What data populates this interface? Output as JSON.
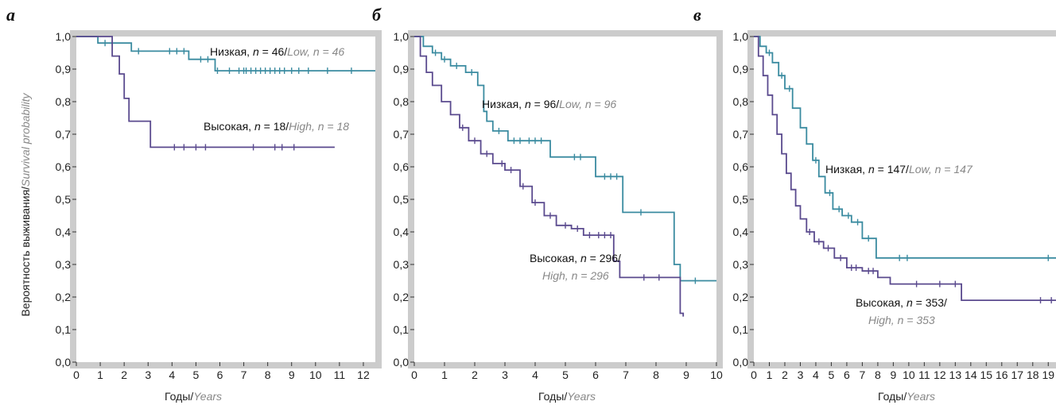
{
  "y_axis_label": {
    "ru": "Вероятность выживания",
    "en": "Survival probability"
  },
  "x_axis_label": {
    "ru": "Годы",
    "en": "Years"
  },
  "colors": {
    "low": "#3a8ba0",
    "high": "#5a4a8e",
    "frame": "#cccccc"
  },
  "chart_data": [
    {
      "panel": "а",
      "type": "line",
      "xlabel": "Годы/Years",
      "ylabel": "Вероятность выживания/Survival probability",
      "xlim": [
        0,
        12.5
      ],
      "ylim": [
        0,
        1
      ],
      "xticks": [
        "0",
        "1",
        "2",
        "3",
        "4",
        "5",
        "6",
        "7",
        "8",
        "9",
        "10",
        "11",
        "12"
      ],
      "yticks": [
        "0,0",
        "0,1",
        "0,2",
        "0,3",
        "0,4",
        "0,5",
        "0,6",
        "0,7",
        "0,8",
        "0,9",
        "1,0"
      ],
      "series": [
        {
          "name": "Низкая, n = 46/Low, n = 46",
          "group": "low",
          "steps": [
            [
              0,
              1.0
            ],
            [
              0.9,
              0.98
            ],
            [
              2.3,
              0.955
            ],
            [
              4.7,
              0.93
            ],
            [
              5.8,
              0.895
            ],
            [
              12.5,
              0.895
            ]
          ],
          "censors": [
            1.2,
            1.5,
            2.6,
            3.9,
            4.2,
            4.5,
            5.2,
            5.5,
            5.9,
            6.4,
            6.8,
            7.0,
            7.1,
            7.3,
            7.5,
            7.7,
            7.9,
            8.1,
            8.3,
            8.5,
            8.7,
            9.0,
            9.3,
            9.7,
            10.5,
            11.5
          ]
        },
        {
          "name": "Высокая, n = 18/High, n = 18",
          "group": "high",
          "steps": [
            [
              0,
              1.0
            ],
            [
              1.5,
              0.94
            ],
            [
              1.8,
              0.885
            ],
            [
              2.0,
              0.81
            ],
            [
              2.2,
              0.74
            ],
            [
              3.1,
              0.66
            ],
            [
              10.8,
              0.66
            ]
          ],
          "censors": [
            4.1,
            4.5,
            5.0,
            5.4,
            7.4,
            8.3,
            8.6,
            9.1
          ]
        }
      ],
      "annotations": [
        {
          "ru": "Низкая, ",
          "n": "n",
          "num": " = 46/",
          "en": "Low, n = 46"
        },
        {
          "ru": "Высокая, ",
          "n": "n",
          "num": " = 18/",
          "en": "High, n = 18"
        }
      ]
    },
    {
      "panel": "б",
      "type": "line",
      "xlabel": "Годы/Years",
      "ylabel": "",
      "xlim": [
        0,
        10
      ],
      "ylim": [
        0,
        1
      ],
      "xticks": [
        "0",
        "1",
        "2",
        "3",
        "4",
        "5",
        "6",
        "7",
        "8",
        "9",
        "10"
      ],
      "yticks": [
        "0,0",
        "0,1",
        "0,2",
        "0,3",
        "0,4",
        "0,5",
        "0,6",
        "0,7",
        "0,8",
        "0,9",
        "1,0"
      ],
      "series": [
        {
          "name": "Низкая, n = 96/Low, n = 96",
          "group": "low",
          "steps": [
            [
              0,
              1.0
            ],
            [
              0.3,
              0.97
            ],
            [
              0.6,
              0.95
            ],
            [
              0.9,
              0.93
            ],
            [
              1.2,
              0.91
            ],
            [
              1.7,
              0.89
            ],
            [
              2.1,
              0.85
            ],
            [
              2.3,
              0.77
            ],
            [
              2.4,
              0.74
            ],
            [
              2.6,
              0.71
            ],
            [
              3.1,
              0.68
            ],
            [
              4.5,
              0.63
            ],
            [
              6.0,
              0.57
            ],
            [
              6.9,
              0.46
            ],
            [
              8.6,
              0.3
            ],
            [
              8.8,
              0.25
            ],
            [
              10,
              0.25
            ]
          ],
          "censors": [
            0.7,
            1.0,
            1.4,
            1.9,
            2.8,
            3.3,
            3.5,
            3.8,
            4.0,
            4.2,
            5.3,
            5.5,
            6.3,
            6.5,
            6.7,
            7.5,
            9.3
          ]
        },
        {
          "name": "Высокая, n = 296/High, n = 296",
          "group": "high",
          "steps": [
            [
              0,
              1.0
            ],
            [
              0.2,
              0.94
            ],
            [
              0.4,
              0.89
            ],
            [
              0.6,
              0.85
            ],
            [
              0.9,
              0.8
            ],
            [
              1.2,
              0.76
            ],
            [
              1.5,
              0.72
            ],
            [
              1.8,
              0.68
            ],
            [
              2.2,
              0.64
            ],
            [
              2.6,
              0.61
            ],
            [
              3.0,
              0.59
            ],
            [
              3.5,
              0.54
            ],
            [
              3.9,
              0.49
            ],
            [
              4.3,
              0.45
            ],
            [
              4.7,
              0.42
            ],
            [
              5.2,
              0.41
            ],
            [
              5.6,
              0.39
            ],
            [
              6.6,
              0.31
            ],
            [
              6.8,
              0.26
            ],
            [
              8.8,
              0.15
            ],
            [
              8.9,
              0.14
            ]
          ],
          "censors": [
            1.6,
            2.0,
            2.4,
            2.9,
            3.2,
            3.6,
            4.0,
            4.5,
            5.0,
            5.4,
            5.8,
            6.1,
            6.3,
            6.5,
            7.6,
            8.1
          ]
        }
      ],
      "annotations": [
        {
          "ru": "Низкая, ",
          "n": "n",
          "num": " = 96/",
          "en": "Low, n = 96"
        },
        {
          "ru": "Высокая, ",
          "n": "n",
          "num": " = 296/",
          "en": "High, n = 296"
        }
      ]
    },
    {
      "panel": "в",
      "type": "line",
      "xlabel": "Годы/Years",
      "ylabel": "",
      "xlim": [
        0,
        19.5
      ],
      "ylim": [
        0,
        1
      ],
      "xticks": [
        "0",
        "1",
        "2",
        "3",
        "4",
        "5",
        "6",
        "7",
        "8",
        "9",
        "10",
        "11",
        "12",
        "13",
        "14",
        "15",
        "16",
        "17",
        "18",
        "19"
      ],
      "yticks": [
        "0,0",
        "0,1",
        "0,2",
        "0,3",
        "0,4",
        "0,5",
        "0,6",
        "0,7",
        "0,8",
        "0,9",
        "1,0"
      ],
      "series": [
        {
          "name": "Низкая, n = 147/Low, n = 147",
          "group": "low",
          "steps": [
            [
              0,
              1.0
            ],
            [
              0.4,
              0.97
            ],
            [
              0.8,
              0.95
            ],
            [
              1.2,
              0.92
            ],
            [
              1.6,
              0.88
            ],
            [
              2.0,
              0.84
            ],
            [
              2.5,
              0.78
            ],
            [
              3.0,
              0.72
            ],
            [
              3.4,
              0.67
            ],
            [
              3.8,
              0.62
            ],
            [
              4.2,
              0.57
            ],
            [
              4.6,
              0.52
            ],
            [
              5.1,
              0.47
            ],
            [
              5.7,
              0.45
            ],
            [
              6.3,
              0.43
            ],
            [
              7.0,
              0.38
            ],
            [
              7.9,
              0.32
            ],
            [
              19.5,
              0.32
            ]
          ],
          "censors": [
            1.0,
            1.8,
            2.3,
            4.0,
            4.9,
            5.5,
            6.1,
            6.7,
            7.4,
            9.4,
            9.9,
            19.0
          ]
        },
        {
          "name": "Высокая, n = 353/High, n = 353",
          "group": "high",
          "steps": [
            [
              0,
              1.0
            ],
            [
              0.3,
              0.94
            ],
            [
              0.6,
              0.88
            ],
            [
              0.9,
              0.82
            ],
            [
              1.2,
              0.76
            ],
            [
              1.5,
              0.7
            ],
            [
              1.8,
              0.64
            ],
            [
              2.1,
              0.58
            ],
            [
              2.4,
              0.53
            ],
            [
              2.7,
              0.48
            ],
            [
              3.0,
              0.44
            ],
            [
              3.4,
              0.4
            ],
            [
              3.9,
              0.37
            ],
            [
              4.5,
              0.35
            ],
            [
              5.2,
              0.32
            ],
            [
              6.0,
              0.29
            ],
            [
              7.0,
              0.28
            ],
            [
              8.0,
              0.26
            ],
            [
              8.8,
              0.24
            ],
            [
              13.4,
              0.19
            ],
            [
              19.5,
              0.19
            ]
          ],
          "censors": [
            3.6,
            4.2,
            4.8,
            5.6,
            6.3,
            6.6,
            7.4,
            7.7,
            10.5,
            12.0,
            13.0,
            18.5,
            19.2
          ]
        }
      ],
      "annotations": [
        {
          "ru": "Низкая, ",
          "n": "n",
          "num": " = 147/",
          "en": "Low, n = 147"
        },
        {
          "ru": "Высокая, ",
          "n": "n",
          "num": " = 353/",
          "en": "High, n = 353"
        }
      ]
    }
  ]
}
